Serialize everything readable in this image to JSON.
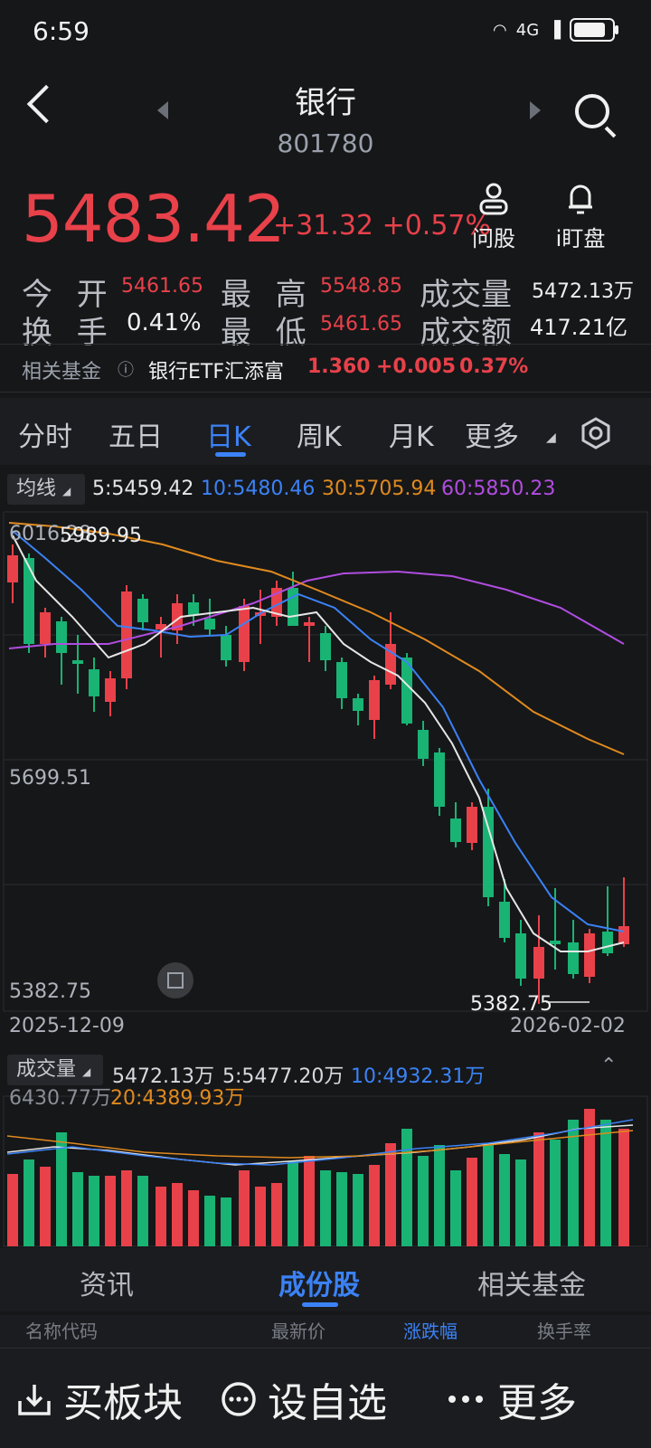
{
  "status": {
    "time": "6:59",
    "net": "4G"
  },
  "header": {
    "title": "银行",
    "code": "801780"
  },
  "quote": {
    "price": "5483.42",
    "change": "+31.32",
    "pct": "+0.57%"
  },
  "tools": [
    {
      "label": "问股",
      "icon": "user-icon"
    },
    {
      "label": "i盯盘",
      "icon": "bell-icon"
    }
  ],
  "stats": {
    "open_label": "今 开",
    "open": "5461.65",
    "high_label": "最 高",
    "high": "5548.85",
    "vol_label": "成交量",
    "vol": "5472.13万",
    "turnover_label": "换 手",
    "turnover": "0.41%",
    "low_label": "最 低",
    "low": "5461.65",
    "amount_label": "成交额",
    "amount": "417.21亿"
  },
  "fund": {
    "label": "相关基金",
    "name": "银行ETF汇添富",
    "price": "1.360",
    "chg": "+0.005",
    "pct": "0.37%"
  },
  "tabs": [
    "分时",
    "五日",
    "日K",
    "周K",
    "月K",
    "更多"
  ],
  "active_tab": "日K",
  "ma": {
    "chip": "均线",
    "ma5": "5:5459.42",
    "ma10": "10:5480.46",
    "ma30": "30:5705.94",
    "ma60": "60:5850.23"
  },
  "chart": {
    "top_label": "6016.28",
    "hi_mark": "5989.95",
    "mid_label": "5699.51",
    "low_label": "5382.75",
    "lo_mark": "5382.75",
    "date_start": "2025-12-09",
    "date_end": "2026-02-02"
  },
  "vol": {
    "chip": "成交量",
    "v": "5472.13万",
    "ma5": "5:5477.20万",
    "ma10": "10:4932.31万",
    "top": "6430.77万",
    "ma20": "20:4389.93万"
  },
  "bottom_tabs": [
    "资讯",
    "成份股",
    "相关基金"
  ],
  "bottom_active": "成份股",
  "sub_header": [
    "名称代码",
    "最新价",
    "涨跌幅",
    "换手率"
  ],
  "actions": [
    {
      "label": "买板块",
      "icon": "download-icon"
    },
    {
      "label": "设自选",
      "icon": "dots-circle-icon"
    },
    {
      "label": "更多",
      "icon": "more-icon"
    }
  ],
  "colors": {
    "up": "#e8414a",
    "down": "#19b374",
    "accent": "#3b82f6",
    "ma5": "#e6e6e6",
    "ma10": "#3b82f6",
    "ma30": "#e08a1e",
    "ma60": "#b04de0"
  }
}
